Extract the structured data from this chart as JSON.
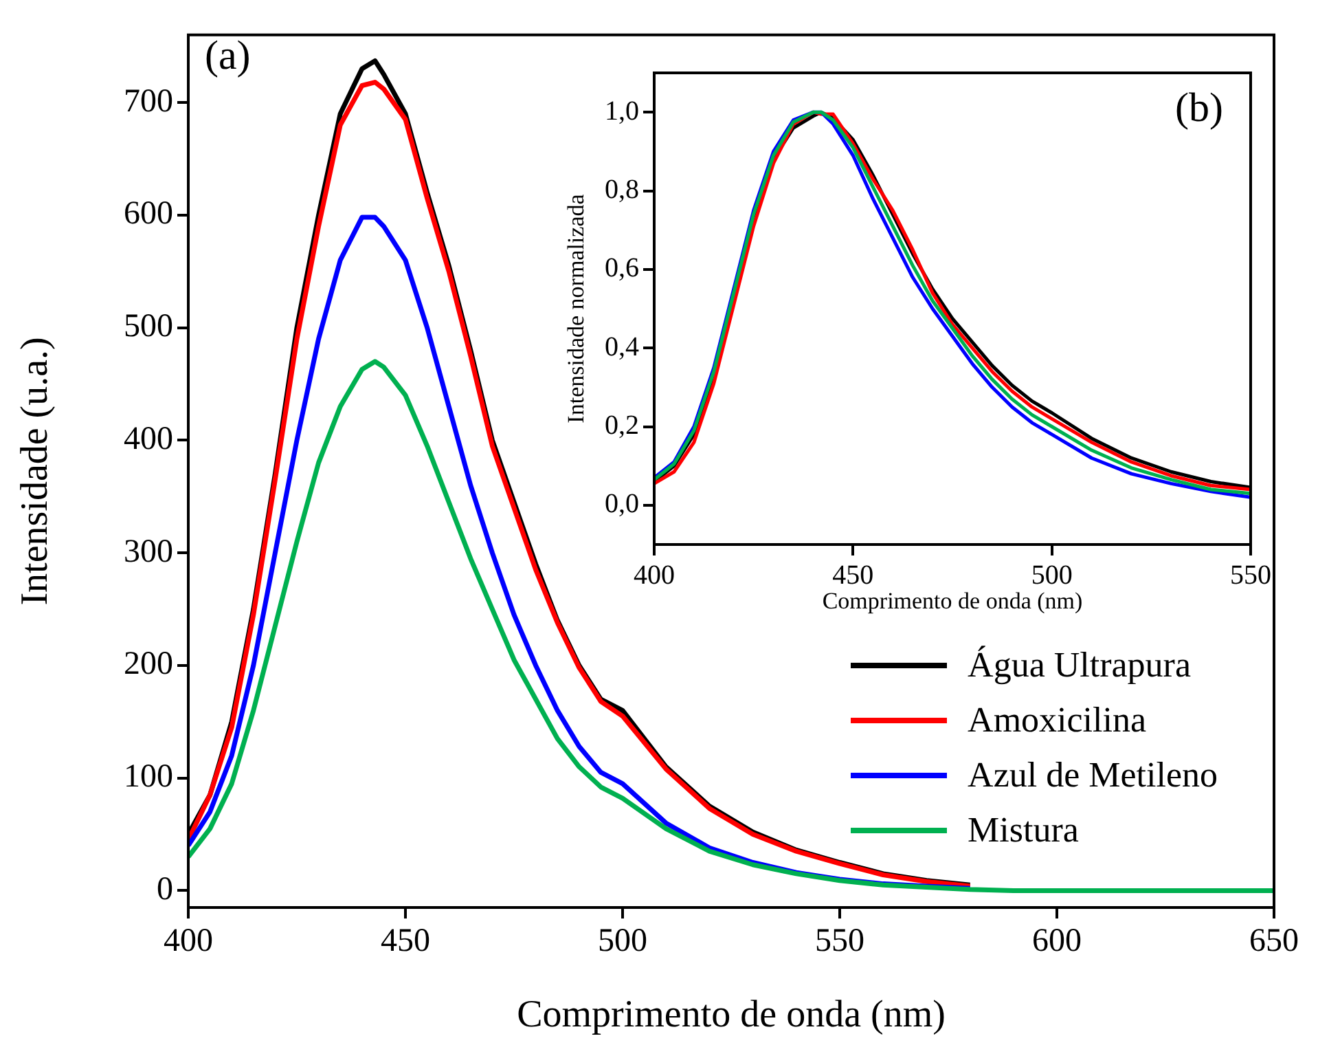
{
  "chart_data": [
    {
      "type": "line",
      "xlabel": "Comprimento de onda (nm)",
      "ylabel": "Intensidade (u.a.)",
      "xlim": [
        400,
        650
      ],
      "xticks": [
        400,
        450,
        500,
        550,
        600,
        650
      ],
      "ylim": [
        -15,
        760
      ],
      "yticks": [
        0,
        100,
        200,
        300,
        400,
        500,
        600,
        700
      ],
      "legend": "bottom right",
      "annotations": [
        "(a)"
      ],
      "x": [
        400,
        405,
        410,
        415,
        420,
        425,
        430,
        435,
        440,
        443,
        445,
        450,
        455,
        460,
        465,
        470,
        475,
        480,
        485,
        490,
        495,
        500,
        510,
        520,
        530,
        540,
        550,
        560,
        570,
        580,
        590,
        600,
        625,
        650
      ],
      "series": [
        {
          "name": "Água Ultrapura",
          "color": "#000000",
          "values": [
            50,
            85,
            150,
            250,
            370,
            500,
            600,
            690,
            730,
            737,
            725,
            690,
            620,
            555,
            480,
            400,
            345,
            290,
            240,
            200,
            170,
            160,
            110,
            75,
            52,
            36,
            25,
            15,
            9,
            5,
            null,
            null,
            null,
            null
          ]
        },
        {
          "name": "Amoxicilina",
          "color": "#ff0000",
          "values": [
            45,
            85,
            145,
            245,
            365,
            490,
            590,
            680,
            715,
            718,
            712,
            685,
            615,
            550,
            475,
            395,
            340,
            285,
            238,
            198,
            168,
            155,
            108,
            73,
            50,
            35,
            24,
            14,
            8,
            4,
            null,
            null,
            null,
            null
          ]
        },
        {
          "name": "Azul de Metileno",
          "color": "#0000ff",
          "values": [
            40,
            70,
            120,
            200,
            300,
            400,
            490,
            560,
            598,
            598,
            590,
            560,
            500,
            430,
            360,
            300,
            245,
            200,
            160,
            128,
            105,
            95,
            60,
            38,
            25,
            16,
            10,
            6,
            4,
            2,
            null,
            null,
            null,
            null
          ]
        },
        {
          "name": "Mistura",
          "color": "#00b050",
          "values": [
            30,
            55,
            95,
            160,
            235,
            310,
            380,
            430,
            463,
            470,
            465,
            440,
            395,
            345,
            295,
            250,
            205,
            170,
            135,
            110,
            92,
            82,
            55,
            35,
            23,
            15,
            9,
            5,
            3,
            1,
            0,
            0,
            0,
            0
          ]
        }
      ]
    },
    {
      "type": "line",
      "xlabel": "Comprimento de onda (nm)",
      "ylabel": "Intensidade normalizada",
      "xlim": [
        400,
        550
      ],
      "xticks": [
        400,
        450,
        500,
        550
      ],
      "ylim": [
        -0.1,
        1.1
      ],
      "yticks": [
        {
          "value": 0,
          "label": "0,0"
        },
        {
          "value": 0.2,
          "label": "0,2"
        },
        {
          "value": 0.4,
          "label": "0,4"
        },
        {
          "value": 0.6,
          "label": "0,6"
        },
        {
          "value": 0.8,
          "label": "0,8"
        },
        {
          "value": 1,
          "label": "1,0"
        }
      ],
      "annotations": [
        "(b)"
      ],
      "x": [
        400,
        405,
        410,
        415,
        420,
        425,
        430,
        435,
        440,
        442,
        445,
        450,
        455,
        460,
        465,
        470,
        475,
        480,
        485,
        490,
        495,
        500,
        510,
        520,
        530,
        540,
        550
      ],
      "series": [
        {
          "color": "#000000",
          "values": [
            0.06,
            0.1,
            0.18,
            0.33,
            0.52,
            0.72,
            0.88,
            0.96,
            0.99,
            1.0,
            0.985,
            0.93,
            0.84,
            0.74,
            0.64,
            0.55,
            0.475,
            0.415,
            0.355,
            0.305,
            0.265,
            0.235,
            0.17,
            0.12,
            0.085,
            0.06,
            0.045
          ]
        },
        {
          "color": "#ff0000",
          "values": [
            0.055,
            0.085,
            0.16,
            0.31,
            0.51,
            0.71,
            0.87,
            0.97,
            1.0,
            0.995,
            0.995,
            0.92,
            0.83,
            0.75,
            0.65,
            0.54,
            0.46,
            0.4,
            0.34,
            0.29,
            0.25,
            0.22,
            0.16,
            0.11,
            0.075,
            0.05,
            0.04
          ]
        },
        {
          "color": "#0000ff",
          "values": [
            0.07,
            0.11,
            0.2,
            0.35,
            0.55,
            0.75,
            0.9,
            0.98,
            1.0,
            1.0,
            0.97,
            0.89,
            0.78,
            0.68,
            0.58,
            0.5,
            0.43,
            0.36,
            0.3,
            0.25,
            0.21,
            0.18,
            0.12,
            0.08,
            0.055,
            0.035,
            0.02
          ]
        },
        {
          "color": "#00b050",
          "values": [
            0.065,
            0.105,
            0.19,
            0.34,
            0.54,
            0.74,
            0.89,
            0.975,
            1.0,
            1.0,
            0.98,
            0.91,
            0.81,
            0.71,
            0.61,
            0.52,
            0.45,
            0.38,
            0.32,
            0.27,
            0.23,
            0.2,
            0.14,
            0.095,
            0.065,
            0.04,
            0.03
          ]
        }
      ]
    }
  ]
}
